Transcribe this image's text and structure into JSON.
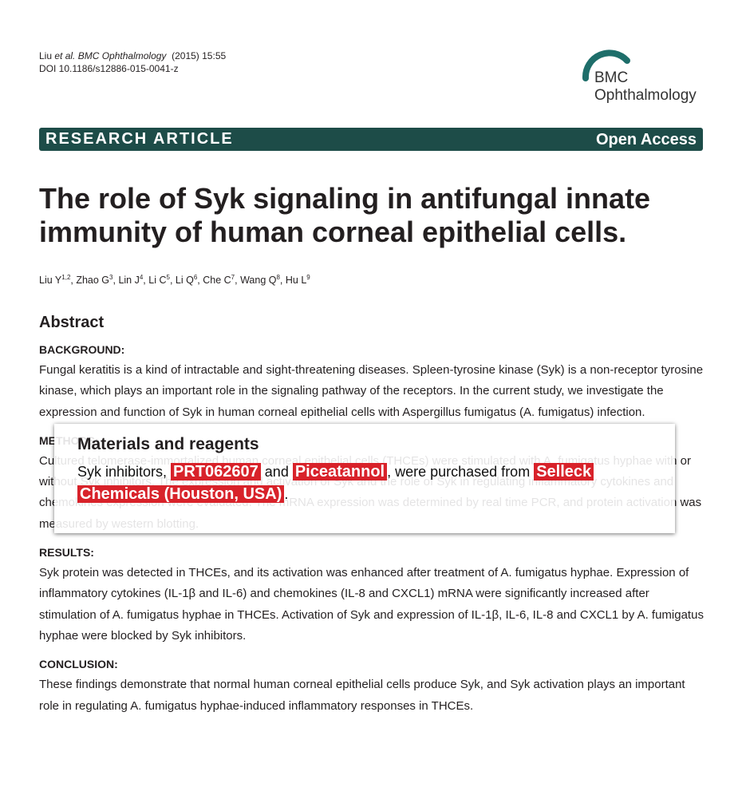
{
  "header": {
    "citation": {
      "author": "Liu",
      "etal": "et al.",
      "journal": "BMC Ophthalmology",
      "issue": "(2015) 15:55"
    },
    "doi": "DOI 10.1186/s12886-015-0041-z",
    "logo": {
      "line1": "BMC",
      "line2": "Ophthalmology"
    }
  },
  "banner": {
    "type": "RESEARCH ARTICLE",
    "access": "Open Access"
  },
  "title": "The role of Syk signaling in antifungal innate immunity of human corneal epithelial cells.",
  "authors": {
    "separator": ", ",
    "list": [
      {
        "name": "Liu Y",
        "sup": "1,2"
      },
      {
        "name": "Zhao G",
        "sup": "3"
      },
      {
        "name": "Lin J",
        "sup": "4"
      },
      {
        "name": "Li C",
        "sup": "5"
      },
      {
        "name": "Li Q",
        "sup": "6"
      },
      {
        "name": "Che C",
        "sup": "7"
      },
      {
        "name": "Wang Q",
        "sup": "8"
      },
      {
        "name": "Hu L",
        "sup": "9"
      }
    ]
  },
  "abstract": {
    "heading": "Abstract",
    "sections": [
      {
        "label": "BACKGROUND:",
        "text": "Fungal keratitis is a kind of intractable and sight-threatening diseases. Spleen-tyrosine kinase (Syk) is a non-receptor tyrosine kinase, which plays an important role in the signaling pathway of the receptors. In the current study, we investigate the expression and function of Syk in human corneal epithelial cells with Aspergillus fumigatus (A. fumigatus) infection."
      },
      {
        "label": "METHODS:",
        "text": "Cultured telomerase-immortalized human corneal epithelial cells (THCEs) were stimulated with A. fumigatus hyphae with or without Syk inhibitors. The expression and activation of Syk and the role of Syk in regulating inflammatory cytokines and chemokines expression were evaluated. The mRNA expression was determined by real time PCR, and protein activation was measured by western blotting."
      },
      {
        "label": "RESULTS:",
        "text": "Syk protein was detected in THCEs, and its activation was enhanced after treatment of A. fumigatus hyphae. Expression of inflammatory cytokines (IL-1β and IL-6) and chemokines (IL-8 and CXCL1) mRNA were significantly increased after stimulation of A. fumigatus hyphae in THCEs. Activation of Syk and expression of IL-1β, IL-6, IL-8 and CXCL1 by A. fumigatus hyphae were blocked by Syk inhibitors."
      },
      {
        "label": "CONCLUSION:",
        "text": "These findings demonstrate that normal human corneal epithelial cells produce Syk, and Syk activation plays an important role in regulating A. fumigatus hyphae-induced inflammatory responses in THCEs."
      }
    ]
  },
  "popup": {
    "title": "Materials and reagents",
    "segments": [
      {
        "text": "Syk inhibitors, ",
        "highlight": false
      },
      {
        "text": "PRT062607",
        "highlight": true
      },
      {
        "text": " and ",
        "highlight": false
      },
      {
        "text": "Piceatannol",
        "highlight": true
      },
      {
        "text": ", were purchased from ",
        "highlight": false
      },
      {
        "text": "Selleck Chemicals (Houston, USA)",
        "highlight": true
      },
      {
        "text": ".",
        "highlight": false
      }
    ]
  }
}
